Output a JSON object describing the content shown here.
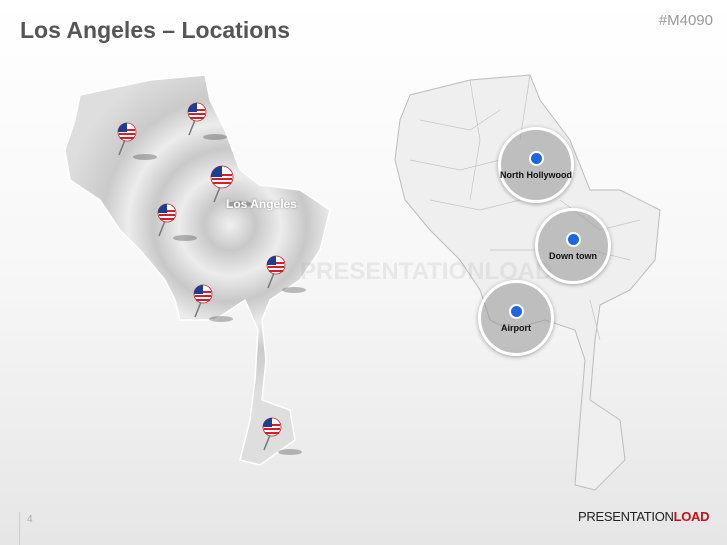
{
  "header": {
    "title": "Los Angeles – Locations",
    "code": "#M4090"
  },
  "left_map": {
    "label": "Los Angeles",
    "pin_count": 7,
    "watermark": "PRESENTATIONLOAD"
  },
  "right_map": {
    "locations": [
      {
        "label": "North Hollywood"
      },
      {
        "label": "Down town"
      },
      {
        "label": "Airport"
      }
    ],
    "dot_color": "#1f66e0"
  },
  "footer": {
    "page_number": "4",
    "logo_light": "PRESENTATION",
    "logo_bold": "LOAD",
    "logo_accent": "#c8101a"
  }
}
